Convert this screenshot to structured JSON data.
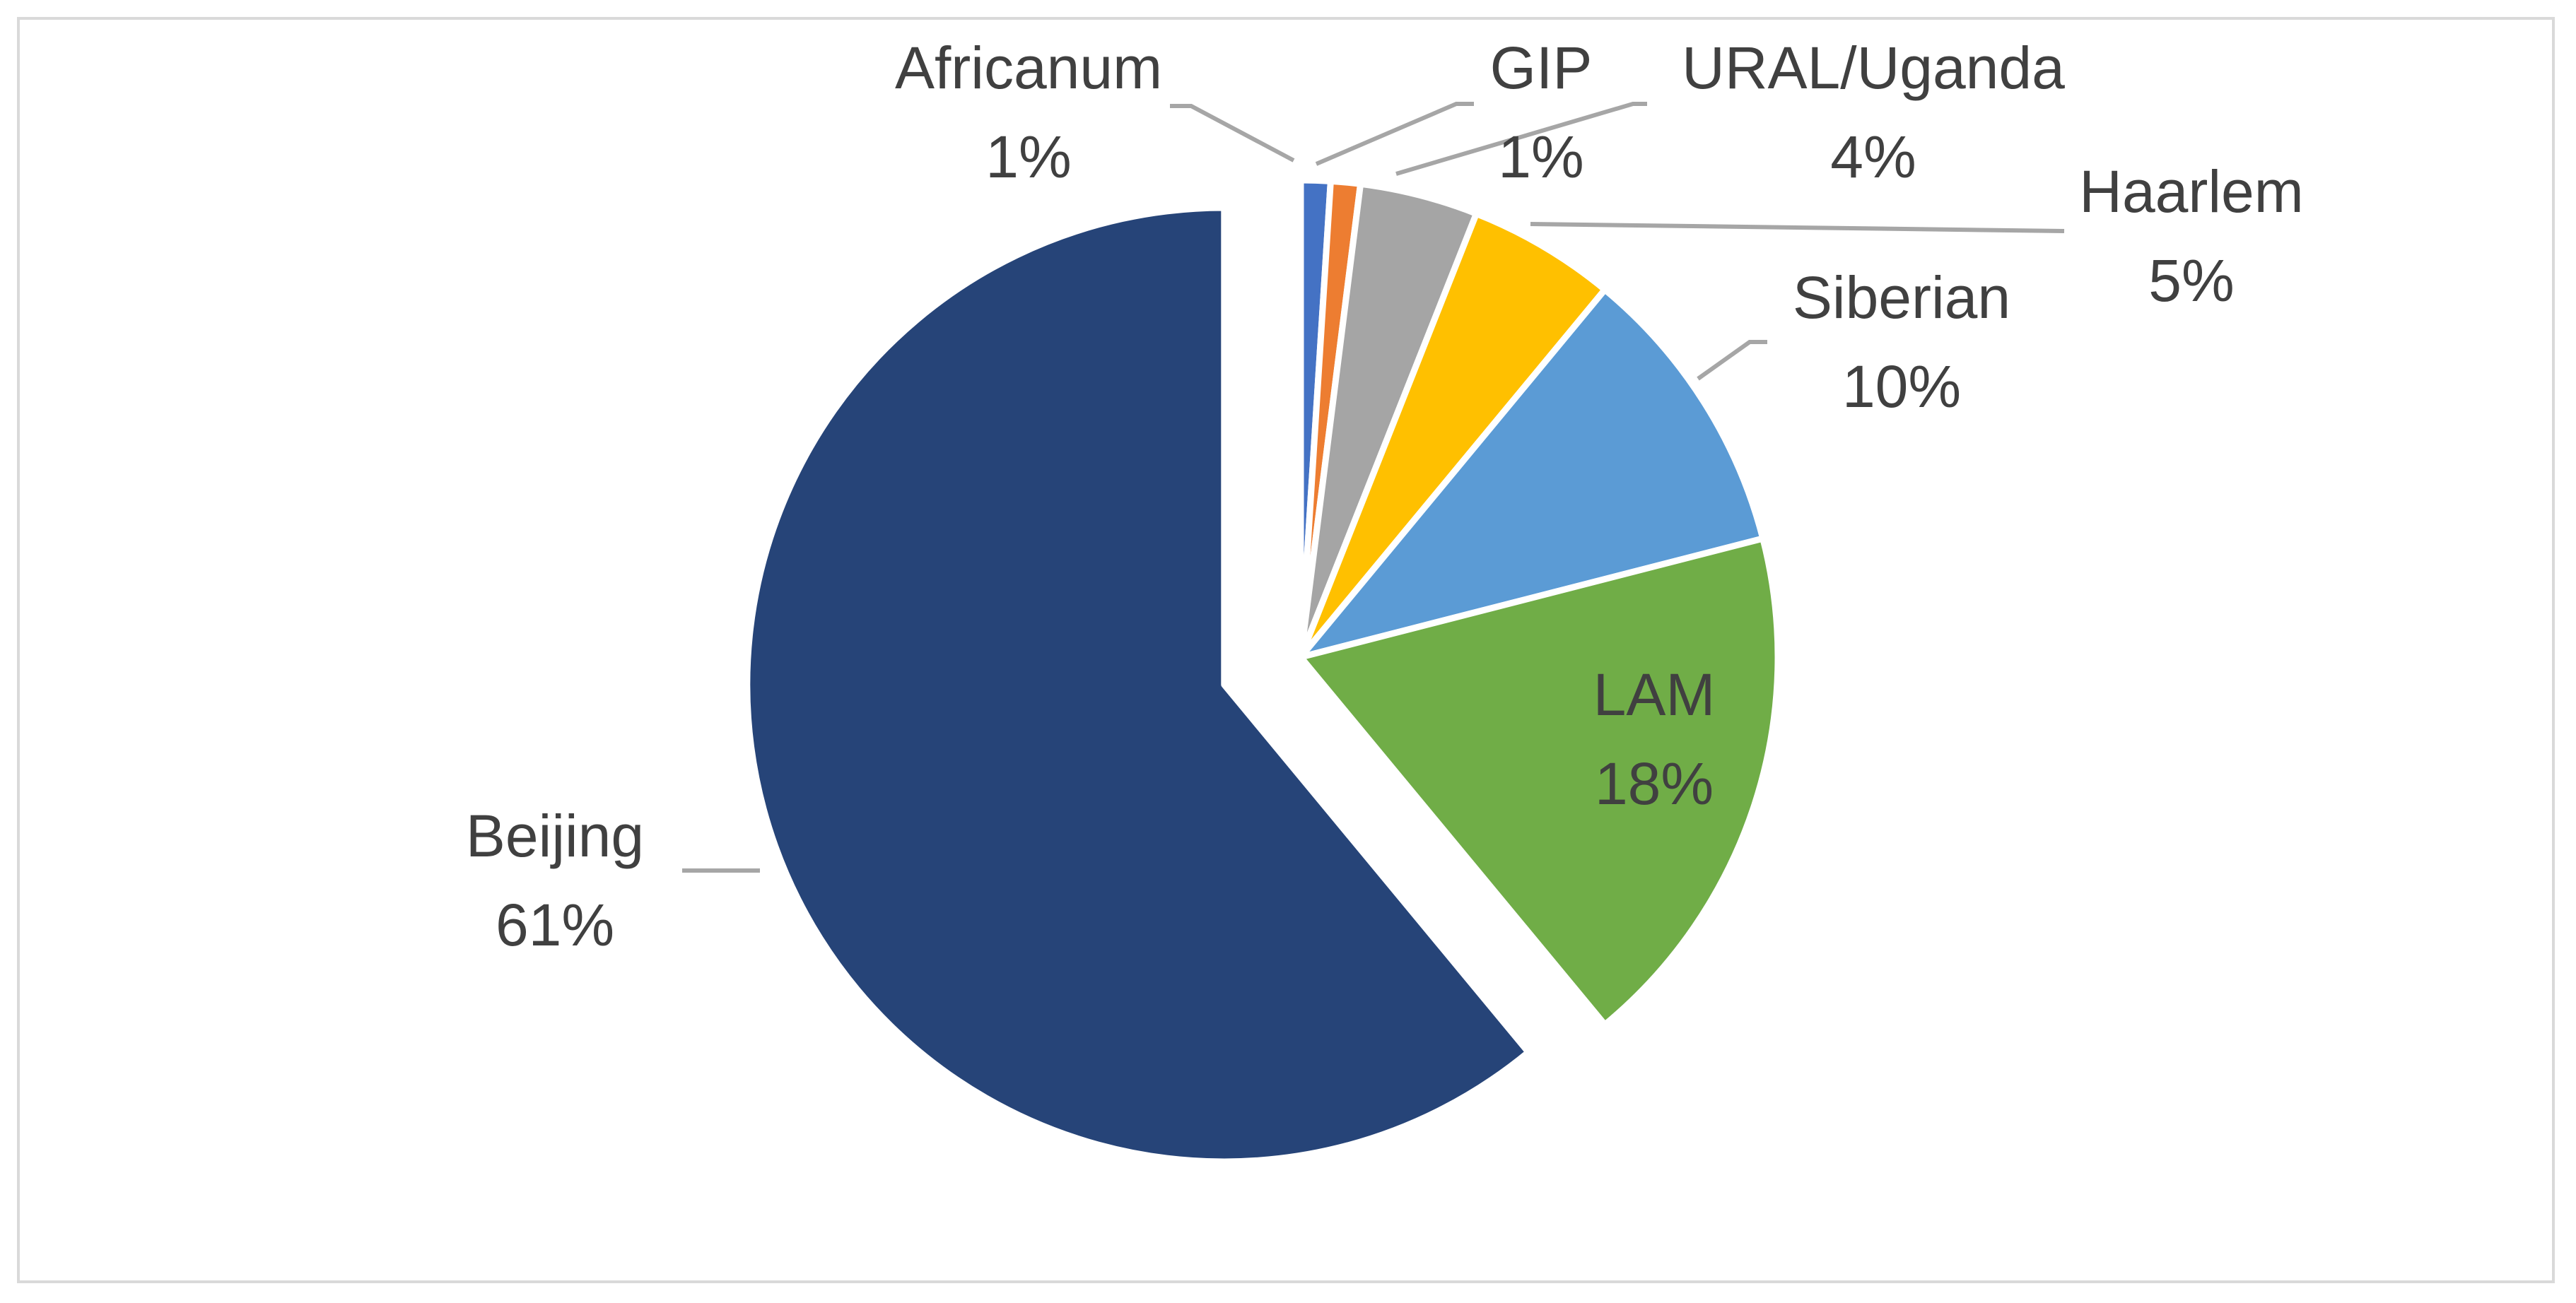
{
  "chart_data": {
    "type": "pie",
    "title": "",
    "categories": [
      "Beijing",
      "LAM",
      "Siberian",
      "Haarlem",
      "URAL/Uganda",
      "GIP",
      "Africanum"
    ],
    "values": [
      61,
      18,
      10,
      5,
      4,
      1,
      1
    ],
    "series": [
      {
        "name": "Beijing",
        "value": 61,
        "label": "61%",
        "color": "#264478"
      },
      {
        "name": "LAM",
        "value": 18,
        "label": "18%",
        "color": "#70ad47"
      },
      {
        "name": "Siberian",
        "value": 10,
        "label": "10%",
        "color": "#5b9bd5"
      },
      {
        "name": "Haarlem",
        "value": 5,
        "label": "5%",
        "color": "#ffc000"
      },
      {
        "name": "URAL/Uganda",
        "value": 4,
        "label": "4%",
        "color": "#a5a5a5"
      },
      {
        "name": "GIP",
        "value": 1,
        "label": "1%",
        "color": "#ed7d31"
      },
      {
        "name": "Africanum",
        "value": 1,
        "label": "1%",
        "color": "#4472c4"
      }
    ],
    "exploded": "Beijing",
    "legend": "none",
    "data_labels": "category and percentage"
  }
}
